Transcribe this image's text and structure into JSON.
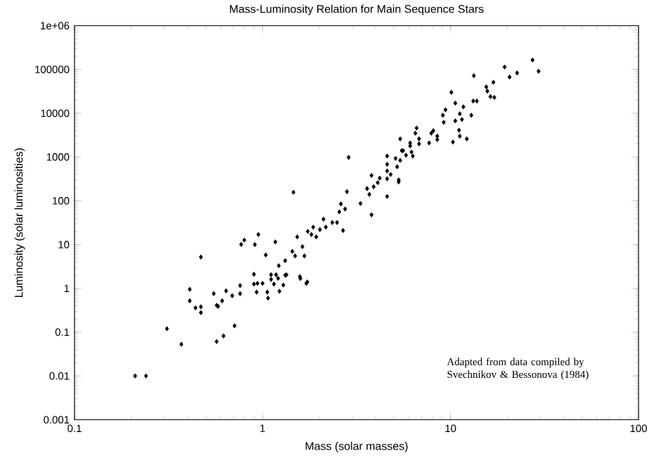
{
  "chart_data": {
    "type": "scatter",
    "title": "Mass-Luminosity Relation for Main Sequence Stars",
    "xlabel": "Mass (solar masses)",
    "ylabel": "Luminosity (solar luminosities)",
    "annotations": [
      "Adapted from data compiled by Svechnikov & Bessonova (1984)"
    ],
    "log": "xy",
    "marker": "diamond",
    "color": "#000000",
    "xlim": [
      0.1,
      100
    ],
    "ylim": [
      0.001,
      1000000
    ],
    "xticks": [
      0.1,
      1,
      10,
      100
    ],
    "yticks": [
      0.001,
      0.01,
      0.1,
      1,
      10,
      100,
      1000,
      10000,
      100000,
      {
        "value": 1000000,
        "label": "1e+06"
      }
    ],
    "x": [
      0.21,
      0.24,
      0.31,
      0.37,
      0.41,
      0.41,
      0.44,
      0.47,
      0.47,
      0.47,
      0.57,
      0.55,
      0.57,
      0.58,
      0.62,
      0.61,
      0.64,
      0.69,
      0.71,
      0.76,
      0.76,
      0.9,
      0.9,
      0.93,
      0.94,
      1.0,
      1.06,
      1.07,
      1.04,
      1.11,
      1.15,
      1.18,
      1.23,
      1.29,
      1.34,
      1.58,
      1.59,
      1.71,
      0.77,
      2.87,
      1.46,
      2.81,
      3.32,
      2.61,
      2.75,
      2.56,
      2.11,
      2.35,
      2.49,
      1.86,
      2.02,
      2.17,
      2.68,
      1.74,
      1.82,
      1.93,
      1.53,
      1.63,
      1.67,
      1.44,
      1.49,
      1.32,
      1.22,
      1.32,
      1.17,
      0.95,
      0.91,
      0.8,
      1.73,
      1.11,
      1.21,
      27.3,
      29.4,
      19.4,
      20.6,
      22.6,
      13.3,
      10.1,
      15.5,
      15.7,
      16.9,
      16.3,
      17.1,
      13.2,
      13.8,
      10.6,
      9.4,
      11.7,
      11.2,
      12.9,
      9.1,
      11.5,
      10.6,
      9.2,
      11.1,
      11.2,
      12.2,
      10.3,
      8.1,
      7.9,
      8.5,
      8.5,
      7.7,
      6.6,
      6.5,
      6.8,
      6.8,
      6.1,
      6.1,
      6.2,
      6.3,
      5.8,
      5.4,
      5.5,
      5.6,
      4.6,
      5.1,
      5.4,
      4.6,
      5.2,
      4.6,
      4.8,
      3.8,
      4.2,
      4.6,
      5.3,
      5.3,
      4.1,
      3.6,
      3.9,
      3.7,
      4.6,
      3.8
    ],
    "values": [
      0.01,
      0.01,
      0.12,
      0.053,
      0.95,
      0.52,
      0.36,
      0.38,
      0.28,
      5.2,
      0.061,
      0.76,
      0.41,
      0.39,
      0.082,
      0.52,
      0.88,
      0.68,
      0.14,
      0.76,
      1.16,
      2.1,
      1.25,
      0.82,
      1.3,
      1.3,
      0.82,
      0.6,
      5.8,
      1.6,
      1.25,
      2.05,
      0.86,
      1.19,
      2.05,
      1.85,
      1.68,
      1.3,
      10.1,
      980,
      157,
      162,
      87,
      85,
      65,
      56,
      38,
      32,
      32,
      25,
      22,
      25,
      21,
      20,
      17,
      15,
      15,
      9.0,
      5.5,
      7.0,
      5.5,
      4.3,
      3.3,
      2.0,
      11.5,
      17,
      10,
      12.7,
      1.4,
      2.05,
      1.7,
      165000,
      91000,
      114000,
      67000,
      83000,
      72000,
      30000,
      40000,
      32000,
      51000,
      24000,
      23000,
      19000,
      19000,
      17000,
      12000,
      14000,
      9700,
      9000,
      9000,
      7200,
      6700,
      6200,
      4100,
      3000,
      2600,
      2200,
      4000,
      3500,
      3000,
      2500,
      2100,
      4600,
      3500,
      2600,
      2000,
      2100,
      1800,
      1300,
      1050,
      1100,
      2600,
      1400,
      1400,
      1050,
      930,
      840,
      680,
      600,
      480,
      400,
      380,
      330,
      320,
      300,
      270,
      260,
      190,
      210,
      140,
      126,
      48
    ]
  }
}
